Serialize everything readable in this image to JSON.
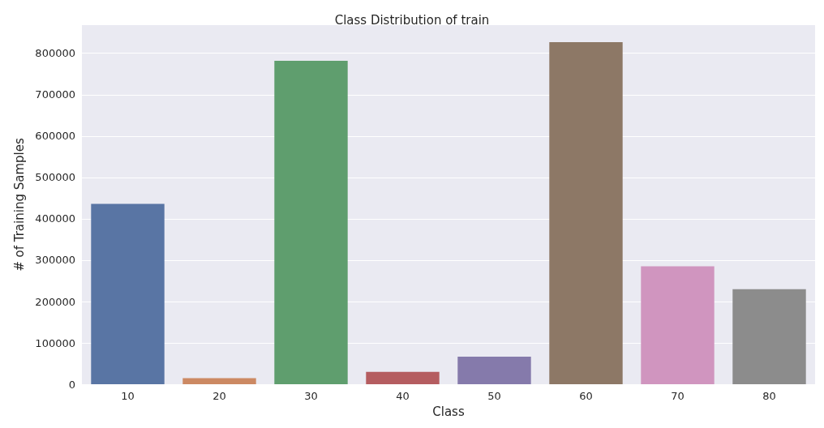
{
  "chart_data": {
    "type": "bar",
    "title": "Class Distribution of train",
    "xlabel": "Class",
    "ylabel": "# of Training Samples",
    "categories": [
      "10",
      "20",
      "30",
      "40",
      "50",
      "60",
      "70",
      "80"
    ],
    "values": [
      436000,
      15000,
      782000,
      30000,
      67000,
      827000,
      285000,
      230000
    ],
    "colors": [
      "#5975a4",
      "#cc8963",
      "#5f9e6e",
      "#b55d60",
      "#857aab",
      "#8d7866",
      "#d095bf",
      "#8c8c8c"
    ],
    "ylim": [
      0,
      868000
    ],
    "yticks": [
      0,
      100000,
      200000,
      300000,
      400000,
      500000,
      600000,
      700000,
      800000
    ],
    "grid": "y"
  }
}
